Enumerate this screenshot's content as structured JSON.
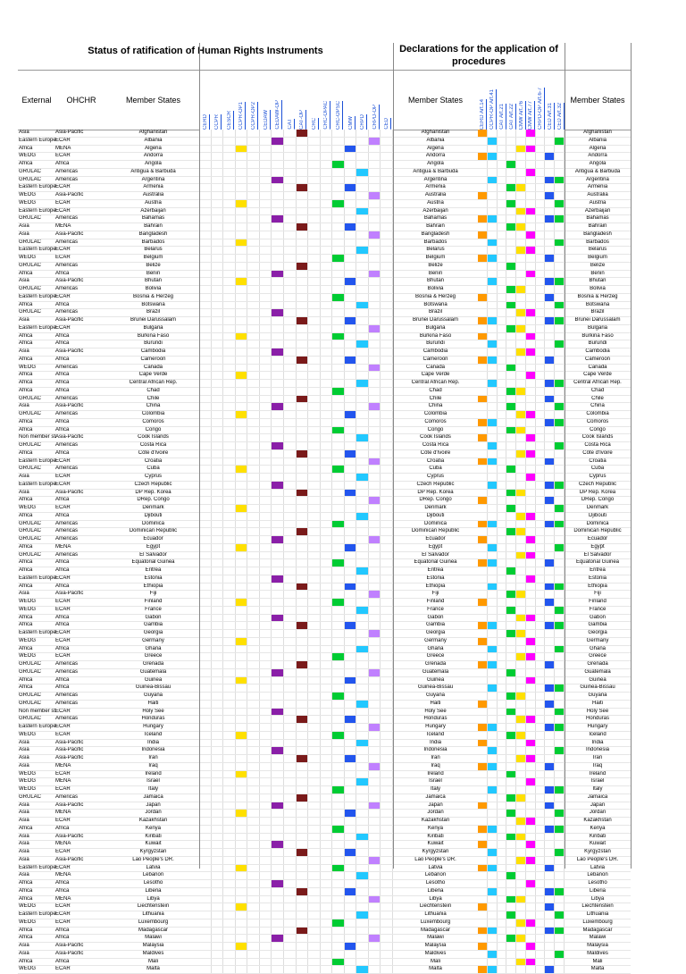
{
  "title_left": "Status of ratification of Human Rights Instruments",
  "title_right": "Declarations for the application of procedures",
  "headers": {
    "external": "External",
    "ohchr": "OHCHR",
    "member_states": "Member States",
    "instruments": [
      "CERD",
      "CCPR",
      "CESCR",
      "CCPR-OP1",
      "CCPR-OP2",
      "CEDAW",
      "CEDAW-OP",
      "CAT",
      "CAT-OP",
      "CRC",
      "CRC-OPAC",
      "CRC-OPSC",
      "CMW",
      "CRPD",
      "CRPD-OP",
      "CED"
    ],
    "declarations": [
      "CERD Art.14",
      "CCPR-OP Art.41",
      "CAT Art.21",
      "CAT Art.22",
      "CMW Art.76",
      "CMW Art.77",
      "CRPD-OP Art.6-7",
      "CED Art.31",
      "CED Art.32"
    ]
  },
  "colors": {
    "one": "#ffffff",
    "zero_yellow": "#ffe000",
    "purple": "#8a1fa8",
    "brown": "#7a1a1a",
    "green": "#00cc33",
    "cyan": "#22c8ff",
    "blue": "#2255ee",
    "red": "#e01010",
    "lavender": "#c080ff",
    "magenta": "#ff00ff",
    "orange": "#ff9900"
  },
  "rows": [
    [
      "Asia",
      "Asia-Pacific",
      "Afghanistan"
    ],
    [
      "Eastern Europe",
      "ECAR",
      "Albania"
    ],
    [
      "Africa",
      "MENA",
      "Algeria"
    ],
    [
      "WEOG",
      "ECAR",
      "Andorra"
    ],
    [
      "Africa",
      "Africa",
      "Angola"
    ],
    [
      "GRULAC",
      "Americas",
      "Antigua & Barbuda"
    ],
    [
      "GRULAC",
      "Americas",
      "Argentina"
    ],
    [
      "Eastern Europe",
      "ECAR",
      "Armenia"
    ],
    [
      "WEOG",
      "Asia-Pacific",
      "Australia"
    ],
    [
      "WEOG",
      "ECAR",
      "Austria"
    ],
    [
      "Eastern Europe",
      "ECAR",
      "Azerbaijan"
    ],
    [
      "GRULAC",
      "Americas",
      "Bahamas"
    ],
    [
      "Asia",
      "MENA",
      "Bahrain"
    ],
    [
      "Asia",
      "Asia-Pacific",
      "Bangladesh"
    ],
    [
      "GRULAC",
      "Americas",
      "Barbados"
    ],
    [
      "Eastern Europe",
      "ECAR",
      "Belarus"
    ],
    [
      "WEOG",
      "ECAR",
      "Belgium"
    ],
    [
      "GRULAC",
      "Americas",
      "Belize"
    ],
    [
      "Africa",
      "Africa",
      "Benin"
    ],
    [
      "Asia",
      "Asia-Pacific",
      "Bhutan"
    ],
    [
      "GRULAC",
      "Americas",
      "Bolivia"
    ],
    [
      "Eastern Europe",
      "ECAR",
      "Bosnia & Herzeg"
    ],
    [
      "Africa",
      "Africa",
      "Botswana"
    ],
    [
      "GRULAC",
      "Americas",
      "Brazil"
    ],
    [
      "Asia",
      "Asia-Pacific",
      "Brunei Darussalam"
    ],
    [
      "Eastern Europe",
      "ECAR",
      "Bulgaria"
    ],
    [
      "Africa",
      "Africa",
      "Burkina Faso"
    ],
    [
      "Africa",
      "Africa",
      "Burundi"
    ],
    [
      "Asia",
      "Asia-Pacific",
      "Cambodia"
    ],
    [
      "Africa",
      "Africa",
      "Cameroon"
    ],
    [
      "WEOG",
      "Americas",
      "Canada"
    ],
    [
      "Africa",
      "Africa",
      "Cape Verde"
    ],
    [
      "Africa",
      "Africa",
      "Central African Rep."
    ],
    [
      "Africa",
      "Africa",
      "Chad"
    ],
    [
      "GRULAC",
      "Americas",
      "Chile"
    ],
    [
      "Asia",
      "Asia-Pacific",
      "China"
    ],
    [
      "GRULAC",
      "Americas",
      "Colombia"
    ],
    [
      "Africa",
      "Africa",
      "Comoros"
    ],
    [
      "Africa",
      "Africa",
      "Congo"
    ],
    [
      "Non member state",
      "Asia-Pacific",
      "Cook Islands"
    ],
    [
      "GRULAC",
      "Americas",
      "Costa Rica"
    ],
    [
      "Africa",
      "Africa",
      "Côte d'Ivoire"
    ],
    [
      "Eastern Europe",
      "ECAR",
      "Croatia"
    ],
    [
      "GRULAC",
      "Americas",
      "Cuba"
    ],
    [
      "Asia",
      "ECAR",
      "Cyprus"
    ],
    [
      "Eastern Europe",
      "ECAR",
      "Czech Republic"
    ],
    [
      "Asia",
      "Asia-Pacific",
      "DP Rep. Korea"
    ],
    [
      "Africa",
      "Africa",
      "DRep. Congo"
    ],
    [
      "WEOG",
      "ECAR",
      "Denmark"
    ],
    [
      "Africa",
      "Africa",
      "Djibouti"
    ],
    [
      "GRULAC",
      "Americas",
      "Dominica"
    ],
    [
      "GRULAC",
      "Americas",
      "Dominican Republic"
    ],
    [
      "GRULAC",
      "Americas",
      "Ecuador"
    ],
    [
      "Africa",
      "MENA",
      "Egypt"
    ],
    [
      "GRULAC",
      "Americas",
      "El Salvador"
    ],
    [
      "Africa",
      "Africa",
      "Equatorial Guinea"
    ],
    [
      "Africa",
      "Africa",
      "Eritrea"
    ],
    [
      "Eastern Europe",
      "ECAR",
      "Estonia"
    ],
    [
      "Africa",
      "Africa",
      "Ethiopia"
    ],
    [
      "Asia",
      "Asia-Pacific",
      "Fiji"
    ],
    [
      "WEOG",
      "ECAR",
      "Finland"
    ],
    [
      "WEOG",
      "ECAR",
      "France"
    ],
    [
      "Africa",
      "Africa",
      "Gabon"
    ],
    [
      "Africa",
      "Africa",
      "Gambia"
    ],
    [
      "Eastern Europe",
      "ECAR",
      "Georgia"
    ],
    [
      "WEOG",
      "ECAR",
      "Germany"
    ],
    [
      "Africa",
      "Africa",
      "Ghana"
    ],
    [
      "WEOG",
      "ECAR",
      "Greece"
    ],
    [
      "GRULAC",
      "Americas",
      "Grenada"
    ],
    [
      "GRULAC",
      "Americas",
      "Guatemala"
    ],
    [
      "Africa",
      "Africa",
      "Guinea"
    ],
    [
      "Africa",
      "Africa",
      "Guinea-Bissau"
    ],
    [
      "GRULAC",
      "Americas",
      "Guyana"
    ],
    [
      "GRULAC",
      "Americas",
      "Haiti"
    ],
    [
      "Non member state",
      "ECAR",
      "Holy See"
    ],
    [
      "GRULAC",
      "Americas",
      "Honduras"
    ],
    [
      "Eastern Europe",
      "ECAR",
      "Hungary"
    ],
    [
      "WEOG",
      "ECAR",
      "Iceland"
    ],
    [
      "Asia",
      "Asia-Pacific",
      "India"
    ],
    [
      "Asia",
      "Asia-Pacific",
      "Indonesia"
    ],
    [
      "Asia",
      "Asia-Pacific",
      "Iran"
    ],
    [
      "Asia",
      "MENA",
      "Iraq"
    ],
    [
      "WEOG",
      "ECAR",
      "Ireland"
    ],
    [
      "WEOG",
      "MENA",
      "Israel"
    ],
    [
      "WEOG",
      "ECAR",
      "Italy"
    ],
    [
      "GRULAC",
      "Americas",
      "Jamaica"
    ],
    [
      "Asia",
      "Asia-Pacific",
      "Japan"
    ],
    [
      "Asia",
      "MENA",
      "Jordan"
    ],
    [
      "Asia",
      "ECAR",
      "Kazakhstan"
    ],
    [
      "Africa",
      "Africa",
      "Kenya"
    ],
    [
      "Asia",
      "Asia-Pacific",
      "Kiribati"
    ],
    [
      "Asia",
      "MENA",
      "Kuwait"
    ],
    [
      "Asia",
      "ECAR",
      "Kyrgyzstan"
    ],
    [
      "Asia",
      "Asia-Pacific",
      "Lao People's DR."
    ],
    [
      "Eastern Europe",
      "ECAR",
      "Latvia"
    ],
    [
      "Asia",
      "MENA",
      "Lebanon"
    ],
    [
      "Africa",
      "Africa",
      "Lesotho"
    ],
    [
      "Africa",
      "Africa",
      "Liberia"
    ],
    [
      "Africa",
      "MENA",
      "Libya"
    ],
    [
      "WEOG",
      "ECAR",
      "Liechtenstein"
    ],
    [
      "Eastern Europe",
      "ECAR",
      "Lithuania"
    ],
    [
      "WEOG",
      "ECAR",
      "Luxembourg"
    ],
    [
      "Africa",
      "Africa",
      "Madagascar"
    ],
    [
      "Africa",
      "Africa",
      "Malawi"
    ],
    [
      "Asia",
      "Asia-Pacific",
      "Malaysia"
    ],
    [
      "Asia",
      "Asia-Pacific",
      "Maldives"
    ],
    [
      "Africa",
      "Africa",
      "Mali"
    ],
    [
      "WEOG",
      "ECAR",
      "Malta"
    ]
  ]
}
